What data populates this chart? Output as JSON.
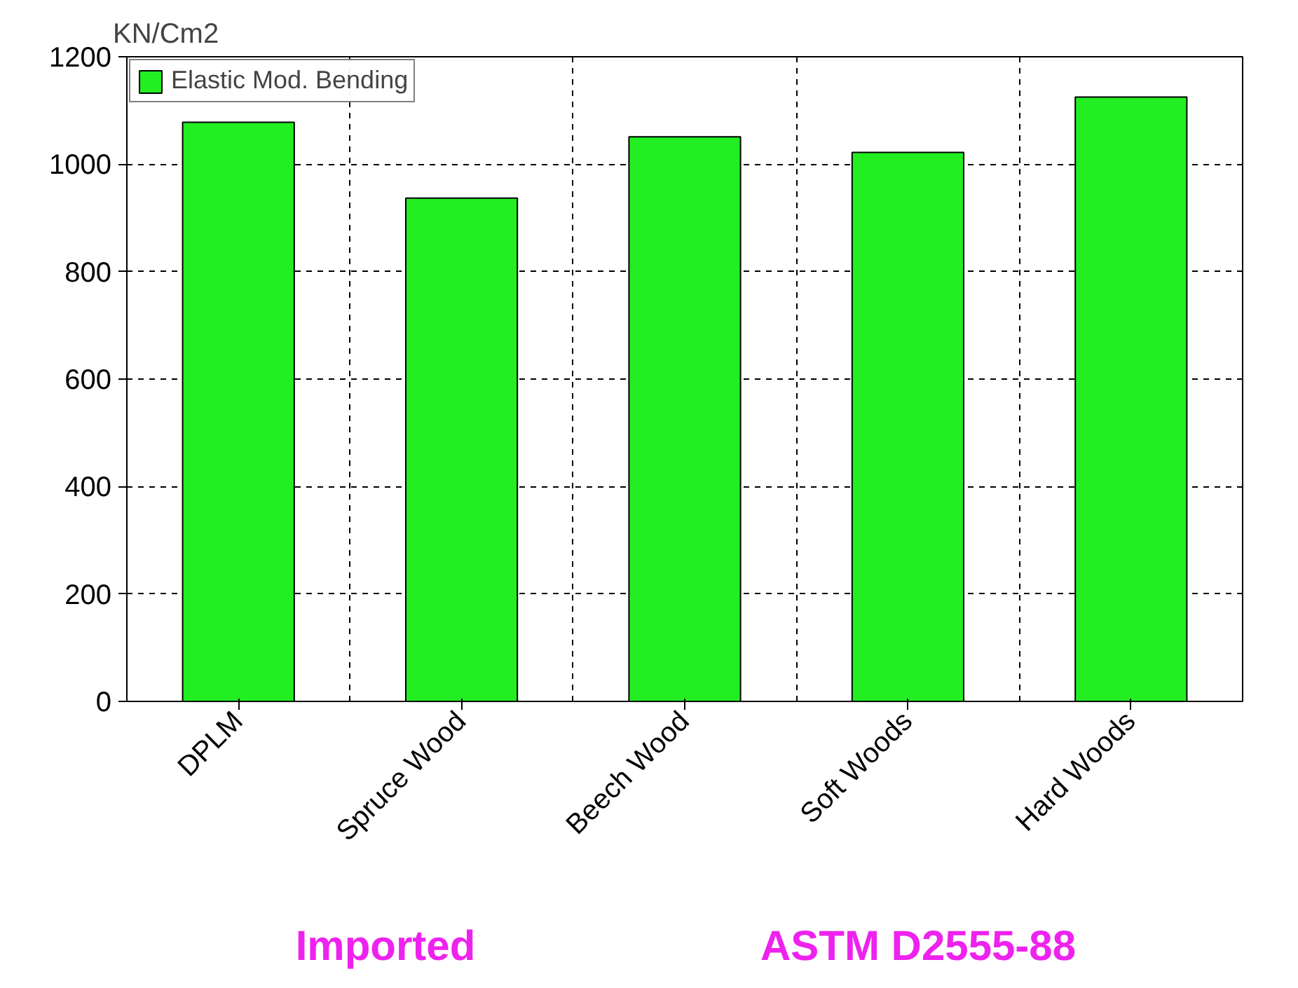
{
  "chart_data": {
    "type": "bar",
    "ylabel": "KN/Cm2",
    "categories": [
      "DPLM",
      "Spruce Wood",
      "Beech Wood",
      "Soft Woods",
      "Hard Woods"
    ],
    "series": [
      {
        "name": "Elastic Mod. Bending",
        "color": "#22ee22",
        "values": [
          1078,
          937,
          1051,
          1022,
          1125
        ]
      }
    ],
    "ylim": [
      0,
      1200
    ],
    "yticks": [
      0,
      200,
      400,
      600,
      800,
      1000,
      1200
    ],
    "grid": true,
    "legend": "top left",
    "annotations": [
      "Imported",
      "ASTM D2555-88"
    ]
  }
}
